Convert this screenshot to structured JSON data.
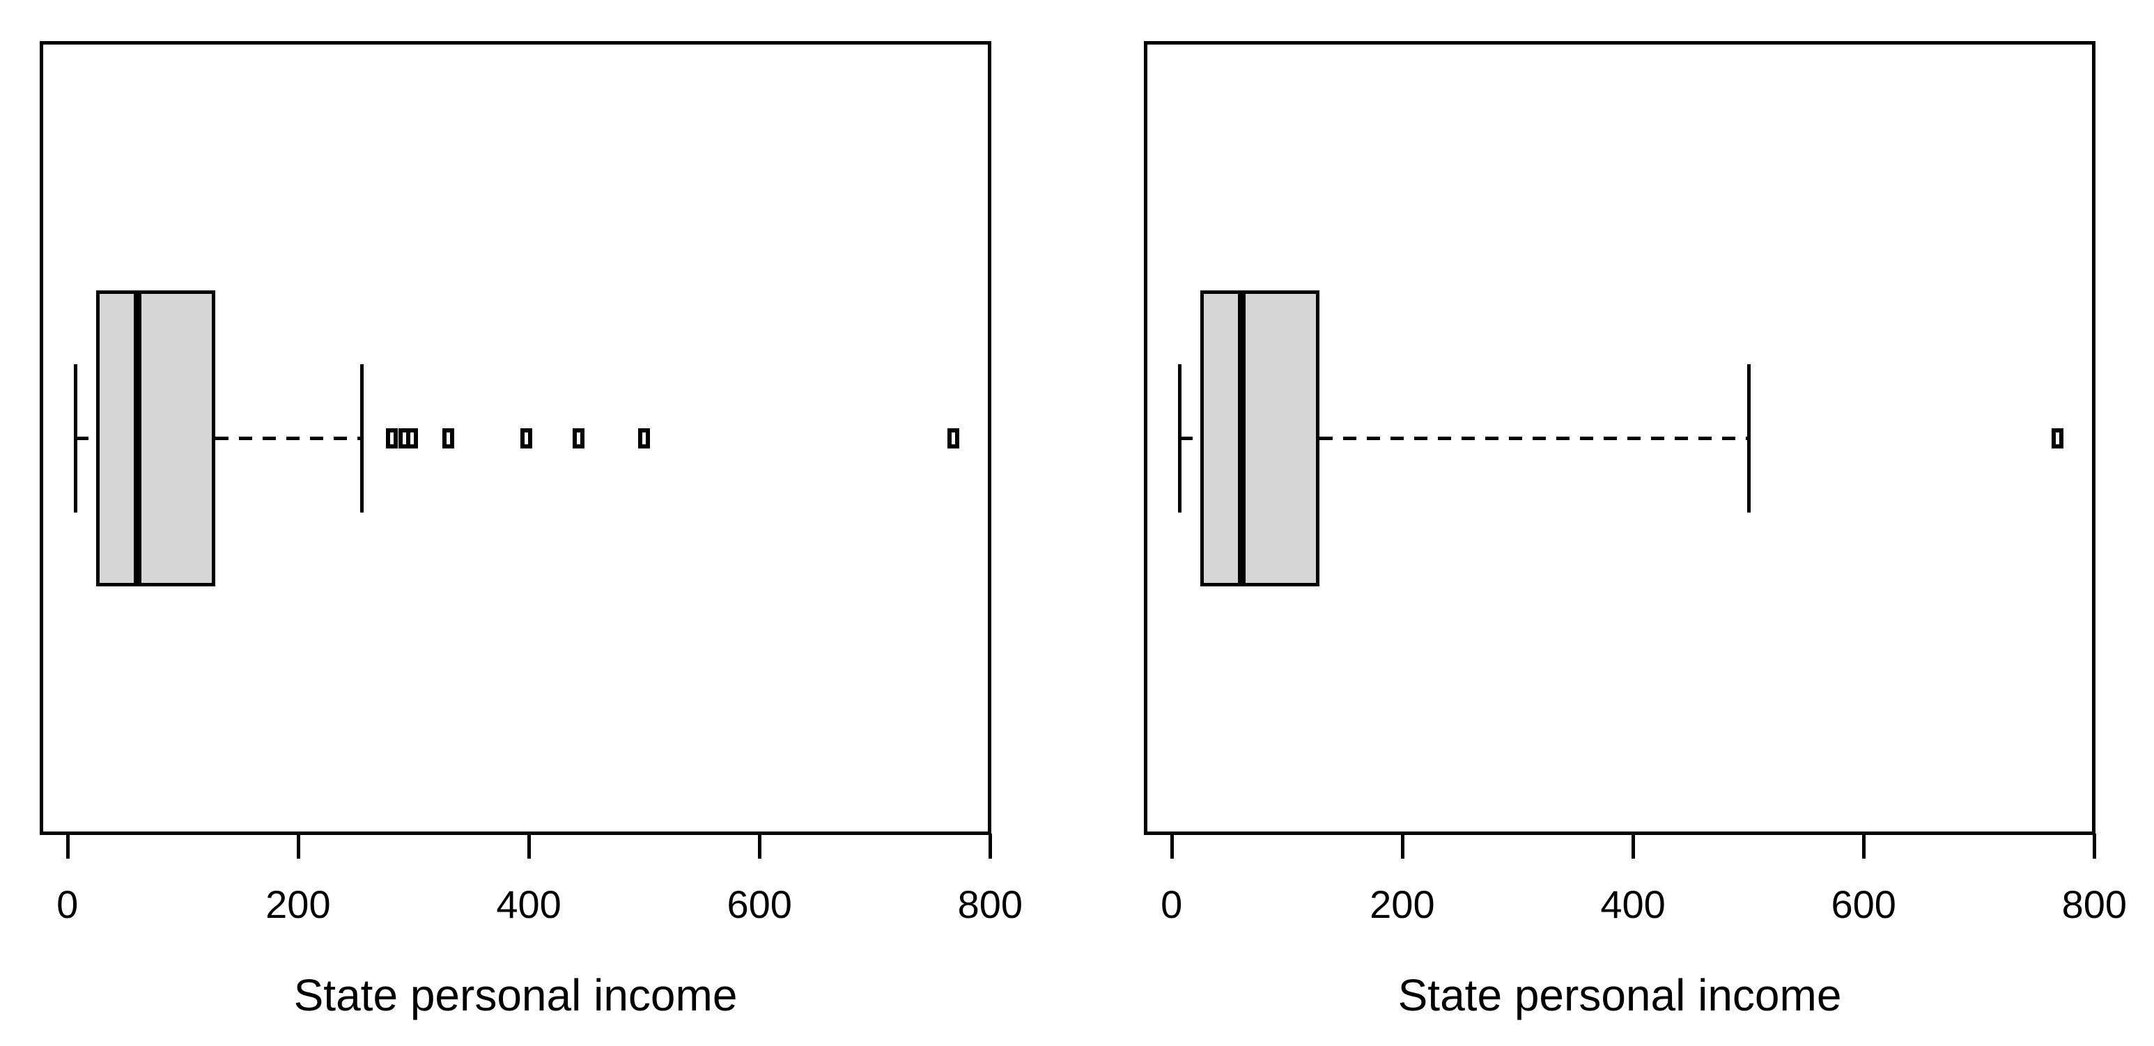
{
  "figure": {
    "background": "#ffffff",
    "line_color": "#000000",
    "box_fill": "#d6d6d6"
  },
  "chart_data": [
    {
      "type": "boxplot",
      "orientation": "horizontal",
      "title": "",
      "xlabel": "State personal income",
      "x_ticks": [
        0,
        200,
        400,
        600,
        800
      ],
      "x_tick_labels": [
        "0",
        "200",
        "400",
        "600",
        "800"
      ],
      "xlim": [
        -24,
        801
      ],
      "grid": false,
      "stats": {
        "whisker_low": 7,
        "q1": 25,
        "median": 61,
        "q3": 128,
        "whisker_high": 255
      },
      "outliers": [
        281,
        292,
        299,
        330,
        398,
        443,
        500,
        768
      ]
    },
    {
      "type": "boxplot",
      "orientation": "horizontal",
      "title": "",
      "xlabel": "State personal income",
      "x_ticks": [
        0,
        200,
        400,
        600,
        800
      ],
      "x_tick_labels": [
        "0",
        "200",
        "400",
        "600",
        "800"
      ],
      "xlim": [
        -24,
        801
      ],
      "grid": false,
      "stats": {
        "whisker_low": 7,
        "q1": 25,
        "median": 61,
        "q3": 128,
        "whisker_high": 500
      },
      "outliers": [
        768
      ]
    }
  ]
}
